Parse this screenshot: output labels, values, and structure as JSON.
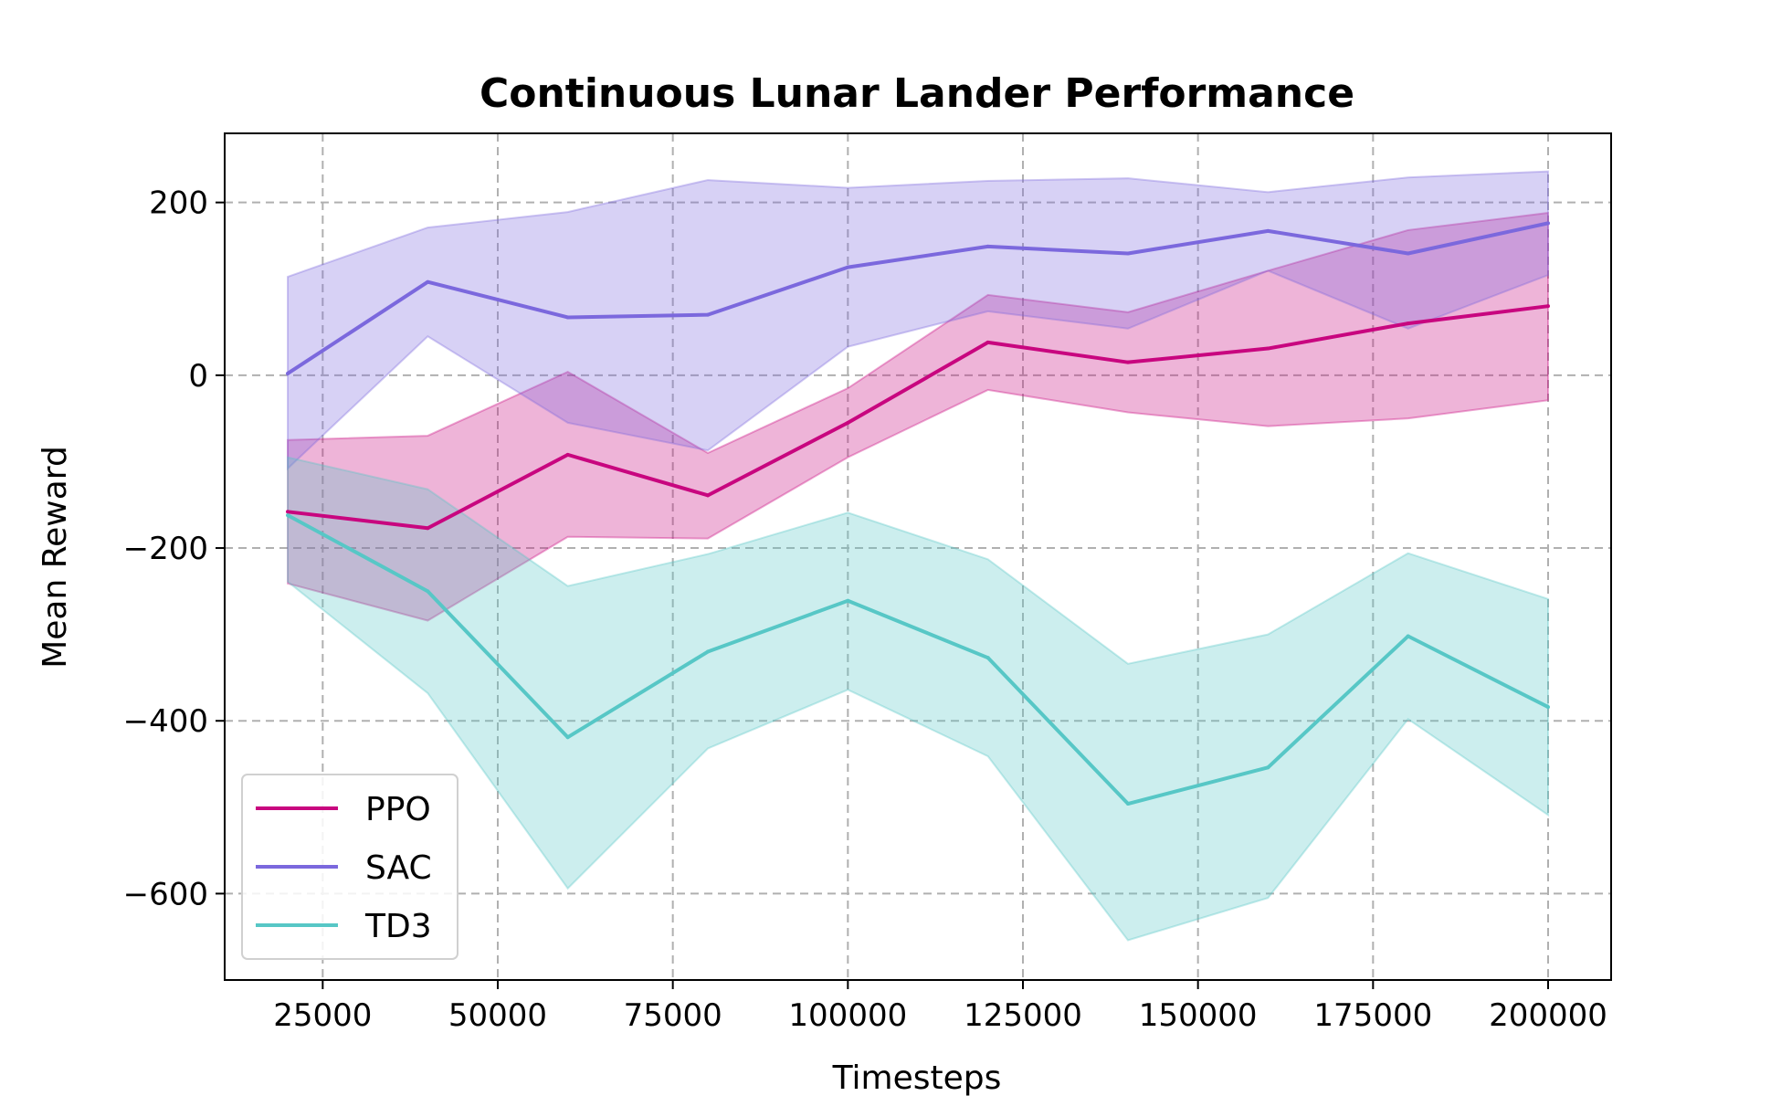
{
  "chart_data": {
    "type": "line",
    "title": "Continuous Lunar Lander Performance",
    "xlabel": "Timesteps",
    "ylabel": "Mean Reward",
    "xlim": [
      11000,
      209000
    ],
    "ylim": [
      -700,
      280
    ],
    "xticks": [
      25000,
      50000,
      75000,
      100000,
      125000,
      150000,
      175000,
      200000
    ],
    "yticks": [
      -600,
      -400,
      -200,
      0,
      200
    ],
    "ytick_labels": [
      "−600",
      "−400",
      "−200",
      "0",
      "200"
    ],
    "grid": true,
    "legend_position": "lower-left",
    "x": [
      20000,
      40000,
      60000,
      80000,
      100000,
      120000,
      140000,
      160000,
      180000,
      200000
    ],
    "series": [
      {
        "name": "PPO",
        "color": "#c8067f",
        "values": [
          -158,
          -177,
          -92,
          -139,
          -55,
          38,
          15,
          31,
          60,
          80
        ],
        "upper": [
          -75,
          -70,
          4,
          -90,
          -15,
          93,
          73,
          121,
          168,
          188
        ],
        "lower": [
          -241,
          -284,
          -187,
          -189,
          -95,
          -17,
          -43,
          -59,
          -50,
          -29
        ]
      },
      {
        "name": "SAC",
        "color": "#7b68dd",
        "values": [
          2,
          108,
          67,
          70,
          125,
          149,
          141,
          167,
          141,
          176
        ],
        "upper": [
          114,
          171,
          189,
          226,
          217,
          225,
          228,
          212,
          229,
          236
        ],
        "lower": [
          -108,
          45,
          -55,
          -87,
          33,
          74,
          54,
          121,
          54,
          116
        ]
      },
      {
        "name": "TD3",
        "color": "#57c7c6",
        "values": [
          -162,
          -250,
          -419,
          -320,
          -261,
          -327,
          -496,
          -454,
          -302,
          -384
        ],
        "upper": [
          -95,
          -132,
          -244,
          -207,
          -159,
          -213,
          -334,
          -300,
          -206,
          -259
        ],
        "lower": [
          -239,
          -368,
          -594,
          -432,
          -364,
          -441,
          -654,
          -605,
          -398,
          -509
        ]
      }
    ]
  }
}
